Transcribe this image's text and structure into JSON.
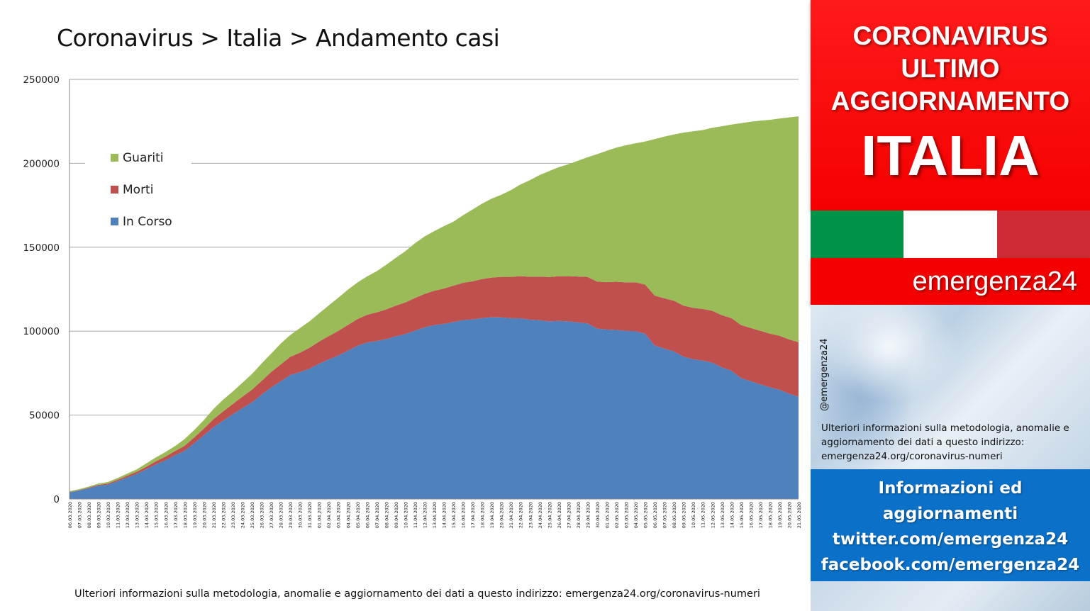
{
  "header": {
    "title": "Coronavirus > Italia > Andamento casi"
  },
  "footer": {
    "note": "Ulteriori informazioni sulla metodologia, anomalie e aggiornamento dei dati a questo indirizzo: emergenza24.org/coronavirus-numeri"
  },
  "side_panel": {
    "banner_line1": "CORONAVIRUS",
    "banner_line2": "ULTIMO",
    "banner_line3": "AGGIORNAMENTO",
    "country": "ITALIA",
    "flag_colors": [
      "#009246",
      "#ffffff",
      "#ce2b37"
    ],
    "brand": "emergenza24",
    "handle": "@emergenza24",
    "note": "Ulteriori informazioni sulla metodologia, anomalie e aggiornamento dei dati a questo indirizzo: emergenza24.org/coronavirus-numeri",
    "info_lines": [
      "Informazioni ed",
      "aggiornamenti",
      "twitter.com/emergenza24",
      "facebook.com/emergenza24"
    ]
  },
  "chart_data": {
    "type": "area",
    "stacked": true,
    "title": "Coronavirus > Italia > Andamento casi",
    "ylim": [
      0,
      250000
    ],
    "yticks": [
      0,
      50000,
      100000,
      150000,
      200000,
      250000
    ],
    "grid": true,
    "legend_position": "top-left",
    "categories": [
      "06.03.2020",
      "07.03.2020",
      "08.03.2020",
      "09.03.2020",
      "10.03.2020",
      "11.03.2020",
      "12.03.2020",
      "13.03.2020",
      "14.03.2020",
      "15.03.2020",
      "16.03.2020",
      "17.03.2020",
      "18.03.2020",
      "19.03.2020",
      "20.03.2020",
      "21.03.2020",
      "22.03.2020",
      "23.03.2020",
      "24.03.2020",
      "25.03.2020",
      "26.03.2020",
      "27.03.2020",
      "28.03.2020",
      "29.03.2020",
      "30.03.2020",
      "31.03.2020",
      "01.04.2020",
      "02.04.2020",
      "03.04.2020",
      "04.04.2020",
      "05.04.2020",
      "06.04.2020",
      "07.04.2020",
      "08.04.2020",
      "09.04.2020",
      "10.04.2020",
      "11.04.2020",
      "12.04.2020",
      "13.04.2020",
      "14.04.2020",
      "15.04.2020",
      "16.04.2020",
      "17.04.2020",
      "18.04.2020",
      "19.04.2020",
      "20.04.2020",
      "21.04.2020",
      "22.04.2020",
      "23.04.2020",
      "24.04.2020",
      "25.04.2020",
      "26.04.2020",
      "27.04.2020",
      "28.04.2020",
      "29.04.2020",
      "30.04.2020",
      "01.05.2020",
      "02.05.2020",
      "03.05.2020",
      "04.05.2020",
      "05.05.2020",
      "06.05.2020",
      "07.05.2020",
      "08.05.2020",
      "09.05.2020",
      "10.05.2020",
      "11.05.2020",
      "12.05.2020",
      "13.05.2020",
      "14.05.2020",
      "15.05.2020",
      "16.05.2020",
      "17.05.2020",
      "18.05.2020",
      "19.05.2020",
      "20.05.2020",
      "21.05.2020"
    ],
    "series": [
      {
        "name": "In Corso",
        "color": "#4f81bd",
        "values": [
          3916,
          5061,
          6387,
          7985,
          8514,
          10590,
          12839,
          14955,
          17750,
          20603,
          23073,
          26062,
          28710,
          33190,
          37860,
          42681,
          46638,
          50418,
          54030,
          57521,
          62013,
          66414,
          70065,
          73880,
          75528,
          77635,
          80572,
          83049,
          85388,
          88274,
          91246,
          93187,
          94067,
          95262,
          96877,
          98273,
          100269,
          102253,
          103616,
          104291,
          105418,
          106607,
          106962,
          107771,
          108257,
          108237,
          107709,
          107699,
          106848,
          106527,
          105847,
          106103,
          105813,
          105205,
          104657,
          101551,
          100943,
          100704,
          100179,
          99980,
          98467,
          91528,
          89624,
          87961,
          84842,
          83324,
          82488,
          81266,
          78457,
          76440,
          72070,
          70187,
          68351,
          66553,
          65129,
          62752,
          60960
        ]
      },
      {
        "name": "Morti",
        "color": "#c0504d",
        "values": [
          197,
          233,
          366,
          463,
          631,
          827,
          1016,
          1266,
          1441,
          1809,
          2158,
          2503,
          2978,
          3405,
          4032,
          4825,
          5476,
          6077,
          6820,
          7503,
          8165,
          9134,
          10023,
          10779,
          11591,
          12428,
          13155,
          13915,
          14681,
          15362,
          15887,
          16523,
          17127,
          17669,
          18279,
          18849,
          19468,
          19899,
          20465,
          21067,
          21645,
          22170,
          22745,
          23227,
          23660,
          24114,
          24648,
          25085,
          25549,
          25969,
          26384,
          26644,
          26977,
          27359,
          27682,
          27967,
          28236,
          28710,
          28884,
          29079,
          29315,
          29684,
          29958,
          30201,
          30395,
          30560,
          30739,
          30911,
          31106,
          31368,
          31610,
          31763,
          31908,
          32007,
          32169,
          32330,
          32486
        ]
      },
      {
        "name": "Guariti",
        "color": "#9bbb59",
        "values": [
          523,
          589,
          622,
          724,
          1004,
          1045,
          1258,
          1439,
          1966,
          2335,
          2749,
          2941,
          4025,
          4440,
          5129,
          6072,
          7024,
          7432,
          8326,
          9362,
          10361,
          10950,
          12384,
          13030,
          14620,
          15729,
          16847,
          18278,
          19758,
          20996,
          21815,
          22837,
          24392,
          26491,
          28470,
          30455,
          32534,
          34211,
          35435,
          37130,
          38092,
          40164,
          42727,
          44927,
          47055,
          48877,
          51600,
          54543,
          57576,
          60498,
          63120,
          64928,
          66624,
          68941,
          71252,
          75945,
          78249,
          79914,
          81654,
          82879,
          85231,
          93245,
          96276,
          99023,
          103031,
          105186,
          106587,
          109039,
          112541,
          115288,
          120205,
          122810,
          125176,
          127326,
          129401,
          132282,
          134560
        ]
      }
    ]
  }
}
